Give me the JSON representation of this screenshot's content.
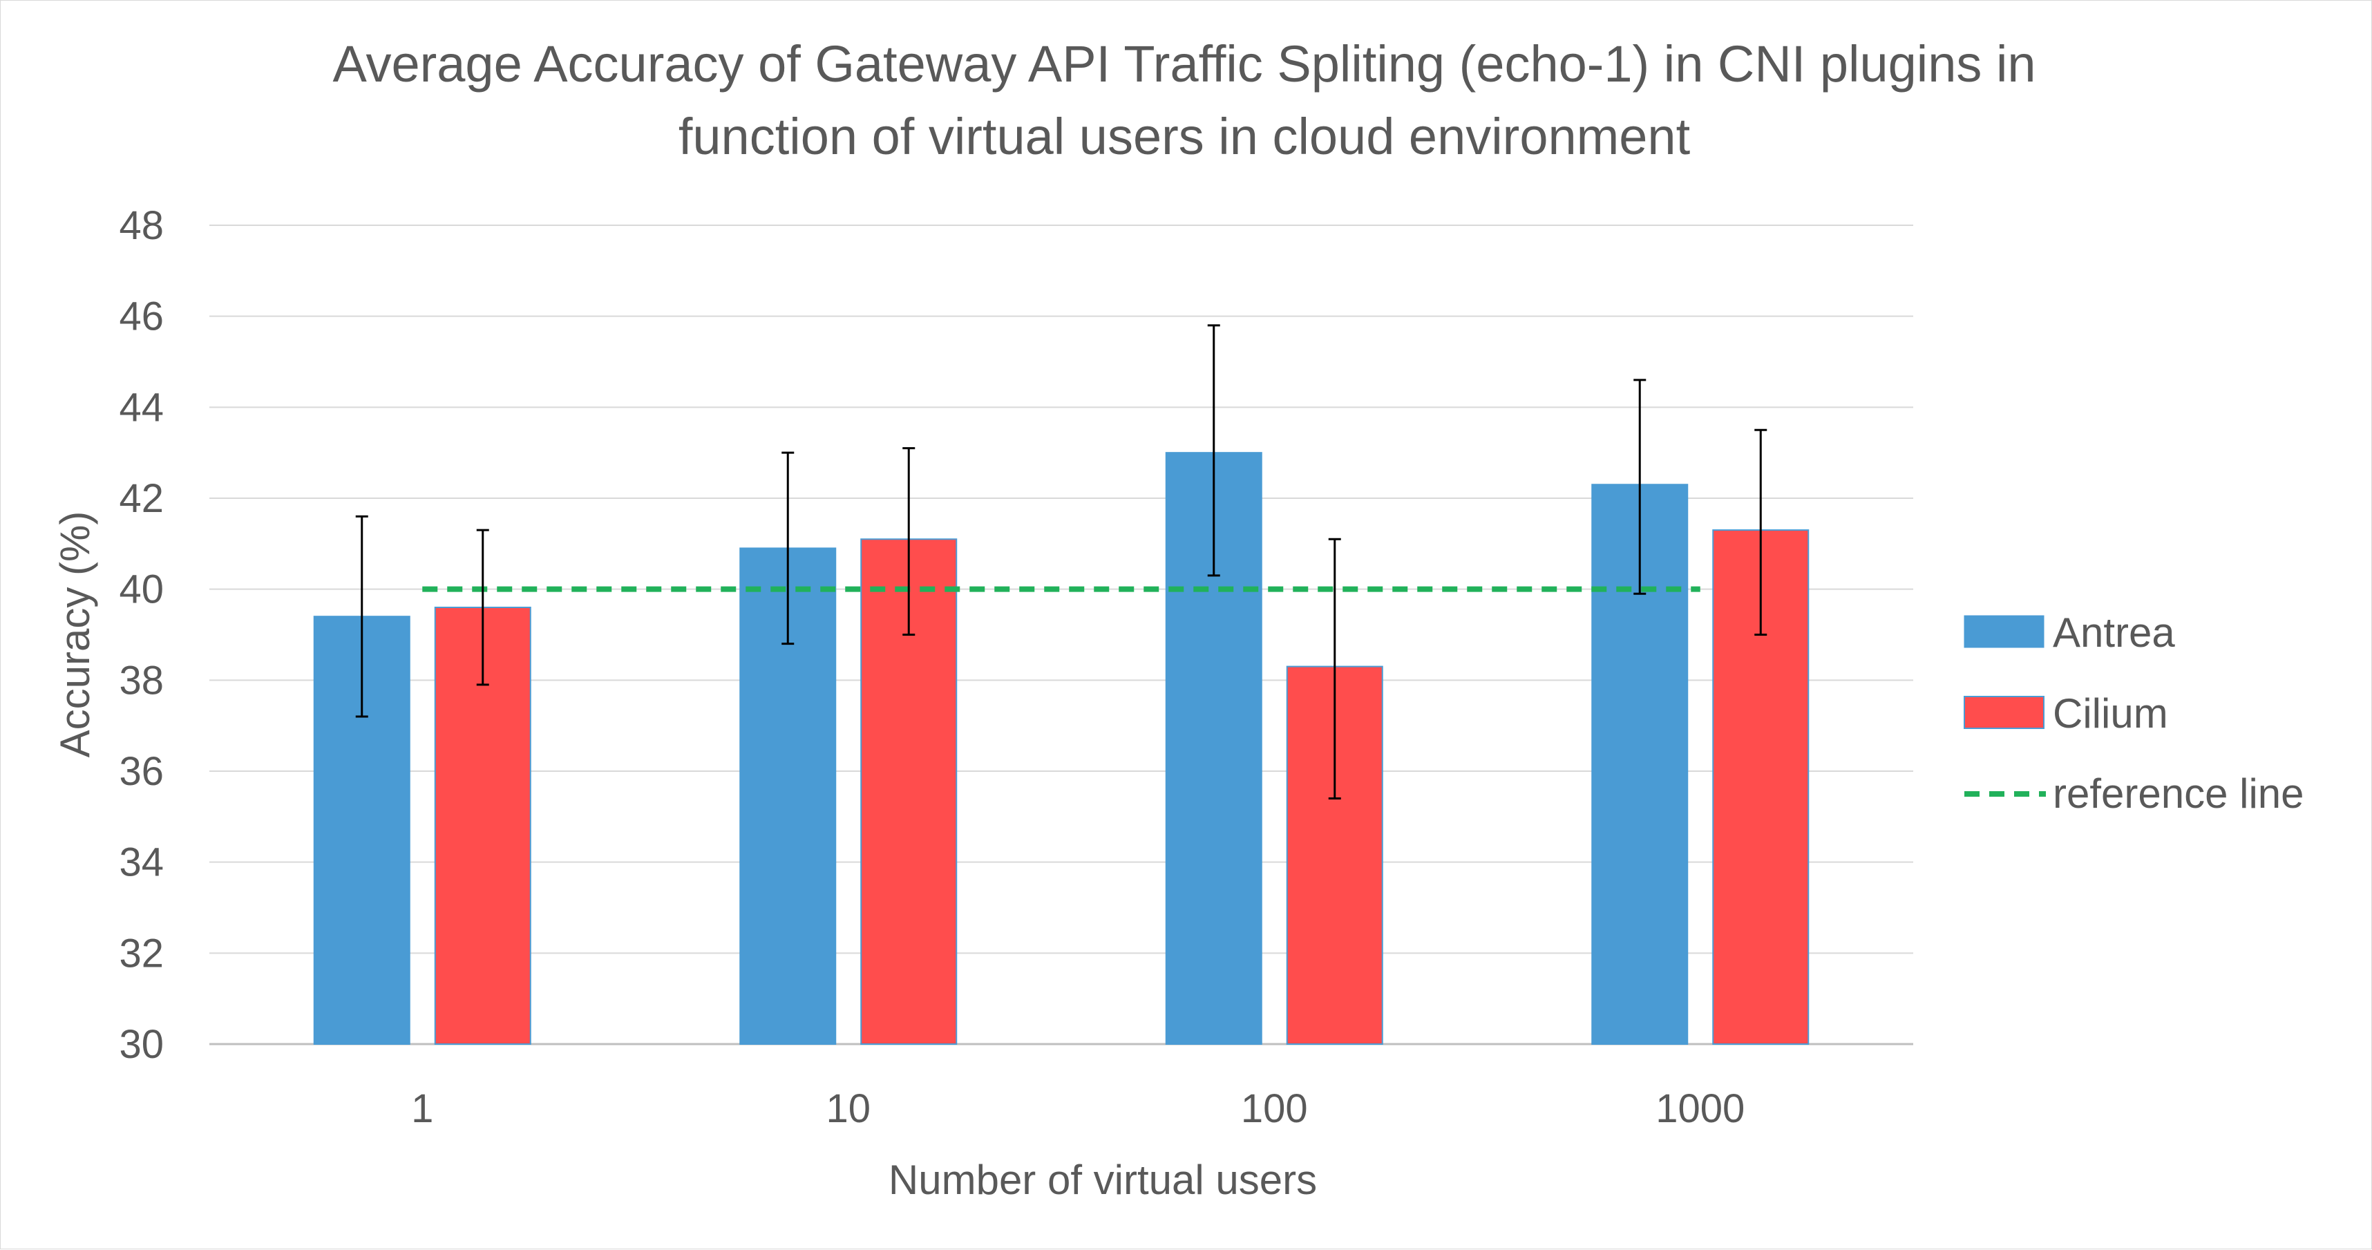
{
  "chart_data": {
    "type": "bar",
    "title": [
      "Average Accuracy of Gateway API Traffic Spliting (echo-1) in CNI plugins in",
      "function of virtual users in cloud environment"
    ],
    "xlabel": "Number of virtual users",
    "ylabel": "Accuracy  (%)",
    "categories": [
      "1",
      "10",
      "100",
      "1000"
    ],
    "ylim": [
      30,
      48
    ],
    "yticks": [
      30,
      32,
      34,
      36,
      38,
      40,
      42,
      44,
      46,
      48
    ],
    "grid": true,
    "legend_position": "right",
    "series": [
      {
        "name": "Antrea",
        "color": "#4a9bd4",
        "values": [
          39.4,
          40.9,
          43.0,
          42.3
        ],
        "error_low": [
          37.2,
          38.8,
          40.3,
          39.9
        ],
        "error_high": [
          41.6,
          43.0,
          45.8,
          44.6
        ]
      },
      {
        "name": "Cilium",
        "color": "#ff4d4d",
        "values": [
          39.6,
          41.1,
          38.3,
          41.3
        ],
        "error_low": [
          37.9,
          39.0,
          35.4,
          39.0
        ],
        "error_high": [
          41.3,
          43.1,
          41.1,
          43.5
        ]
      }
    ],
    "reference_line": {
      "name": "reference line",
      "value": 40,
      "color": "#21b15a",
      "style": "dashed"
    }
  }
}
